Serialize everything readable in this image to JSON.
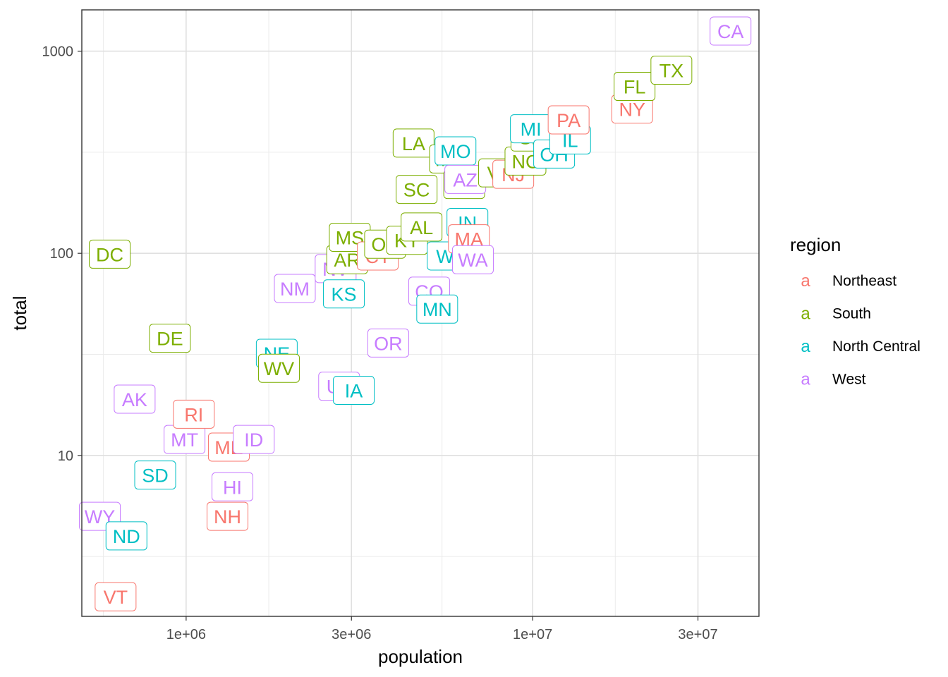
{
  "chart_data": {
    "type": "scatter",
    "title": "",
    "xlabel": "population",
    "ylabel": "total",
    "x_scale": "log10",
    "y_scale": "log10",
    "xlim": [
      500000,
      45000000
    ],
    "ylim": [
      1.6,
      1600
    ],
    "x_ticks": [
      {
        "value": 1000000,
        "label": "1e+06"
      },
      {
        "value": 3000000,
        "label": "3e+06"
      },
      {
        "value": 10000000,
        "label": "1e+07"
      },
      {
        "value": 30000000,
        "label": "3e+07"
      }
    ],
    "y_ticks": [
      {
        "value": 10,
        "label": "10"
      },
      {
        "value": 100,
        "label": "100"
      },
      {
        "value": 1000,
        "label": "1000"
      }
    ],
    "grid": true,
    "legend": {
      "title": "region",
      "position": "right",
      "key_glyph": "a",
      "entries": [
        {
          "name": "Northeast",
          "color": "#F8766D"
        },
        {
          "name": "South",
          "color": "#7CAE00"
        },
        {
          "name": "North Central",
          "color": "#00BFC4"
        },
        {
          "name": "West",
          "color": "#C77CFF"
        }
      ]
    },
    "points": [
      {
        "label": "VT",
        "region": "Northeast",
        "population": 625741,
        "total": 2
      },
      {
        "label": "WY",
        "region": "West",
        "population": 563626,
        "total": 5
      },
      {
        "label": "ND",
        "region": "North Central",
        "population": 672591,
        "total": 4
      },
      {
        "label": "DC",
        "region": "South",
        "population": 601723,
        "total": 99
      },
      {
        "label": "AK",
        "region": "West",
        "population": 710231,
        "total": 19
      },
      {
        "label": "SD",
        "region": "North Central",
        "population": 814180,
        "total": 8
      },
      {
        "label": "DE",
        "region": "South",
        "population": 897934,
        "total": 38
      },
      {
        "label": "MT",
        "region": "West",
        "population": 989415,
        "total": 12
      },
      {
        "label": "RI",
        "region": "Northeast",
        "population": 1052567,
        "total": 16
      },
      {
        "label": "NH",
        "region": "Northeast",
        "population": 1316470,
        "total": 5
      },
      {
        "label": "ME",
        "region": "Northeast",
        "population": 1328361,
        "total": 11
      },
      {
        "label": "HI",
        "region": "West",
        "population": 1360301,
        "total": 7
      },
      {
        "label": "ID",
        "region": "West",
        "population": 1567582,
        "total": 12
      },
      {
        "label": "NE",
        "region": "North Central",
        "population": 1826341,
        "total": 32
      },
      {
        "label": "WV",
        "region": "South",
        "population": 1852994,
        "total": 27
      },
      {
        "label": "NM",
        "region": "West",
        "population": 2059179,
        "total": 67
      },
      {
        "label": "NV",
        "region": "West",
        "population": 2700551,
        "total": 84
      },
      {
        "label": "UT",
        "region": "West",
        "population": 2763885,
        "total": 22
      },
      {
        "label": "KS",
        "region": "North Central",
        "population": 2853118,
        "total": 63
      },
      {
        "label": "AR",
        "region": "South",
        "population": 2915918,
        "total": 93
      },
      {
        "label": "MS",
        "region": "South",
        "population": 2967297,
        "total": 120
      },
      {
        "label": "IA",
        "region": "North Central",
        "population": 3046355,
        "total": 21
      },
      {
        "label": "CT",
        "region": "Northeast",
        "population": 3574097,
        "total": 97
      },
      {
        "label": "OK",
        "region": "South",
        "population": 3751351,
        "total": 111
      },
      {
        "label": "OR",
        "region": "West",
        "population": 3831074,
        "total": 36
      },
      {
        "label": "KY",
        "region": "South",
        "population": 4339367,
        "total": 116
      },
      {
        "label": "LA",
        "region": "South",
        "population": 4533372,
        "total": 351
      },
      {
        "label": "SC",
        "region": "South",
        "population": 4625364,
        "total": 207
      },
      {
        "label": "AL",
        "region": "South",
        "population": 4779736,
        "total": 135
      },
      {
        "label": "CO",
        "region": "West",
        "population": 5029196,
        "total": 65
      },
      {
        "label": "MN",
        "region": "North Central",
        "population": 5303925,
        "total": 53
      },
      {
        "label": "WI",
        "region": "North Central",
        "population": 5686986,
        "total": 97
      },
      {
        "label": "MD",
        "region": "South",
        "population": 5773552,
        "total": 293
      },
      {
        "label": "MO",
        "region": "North Central",
        "population": 5988927,
        "total": 321
      },
      {
        "label": "TN",
        "region": "South",
        "population": 6346105,
        "total": 219
      },
      {
        "label": "AZ",
        "region": "West",
        "population": 6392017,
        "total": 232
      },
      {
        "label": "IN",
        "region": "North Central",
        "population": 6483802,
        "total": 142
      },
      {
        "label": "MA",
        "region": "Northeast",
        "population": 6547629,
        "total": 118
      },
      {
        "label": "WA",
        "region": "West",
        "population": 6724540,
        "total": 93
      },
      {
        "label": "VA",
        "region": "South",
        "population": 8001024,
        "total": 250
      },
      {
        "label": "NJ",
        "region": "Northeast",
        "population": 8791894,
        "total": 246
      },
      {
        "label": "NC",
        "region": "South",
        "population": 9535483,
        "total": 286
      },
      {
        "label": "GA",
        "region": "South",
        "population": 9920000,
        "total": 376
      },
      {
        "label": "MI",
        "region": "North Central",
        "population": 9883640,
        "total": 413
      },
      {
        "label": "OH",
        "region": "North Central",
        "population": 11536504,
        "total": 310
      },
      {
        "label": "IL",
        "region": "North Central",
        "population": 12830632,
        "total": 364
      },
      {
        "label": "PA",
        "region": "Northeast",
        "population": 12702379,
        "total": 457
      },
      {
        "label": "NY",
        "region": "Northeast",
        "population": 19378102,
        "total": 517
      },
      {
        "label": "FL",
        "region": "South",
        "population": 19687653,
        "total": 669
      },
      {
        "label": "TX",
        "region": "South",
        "population": 25145561,
        "total": 805
      },
      {
        "label": "CA",
        "region": "West",
        "population": 37253956,
        "total": 1257
      }
    ]
  }
}
